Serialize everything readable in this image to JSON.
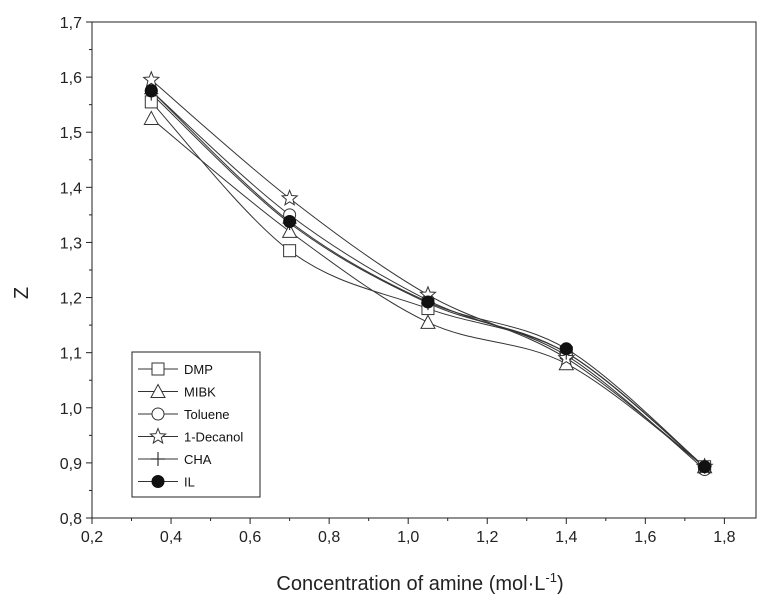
{
  "chart_data": {
    "type": "line",
    "xlabel": "Concentration of amine (mol·L",
    "xlabel_sup": "-1",
    "xlabel_close": ")",
    "ylabel": "Z",
    "xlim": [
      0.2,
      1.88
    ],
    "ylim": [
      0.8,
      1.7
    ],
    "xticks": [
      0.2,
      0.4,
      0.6,
      0.8,
      1.0,
      1.2,
      1.4,
      1.6,
      1.8
    ],
    "xtick_labels": [
      "0,2",
      "0,4",
      "0,6",
      "0,8",
      "1,0",
      "1,2",
      "1,4",
      "1,6",
      "1,8"
    ],
    "yticks": [
      0.8,
      0.9,
      1.0,
      1.1,
      1.2,
      1.3,
      1.4,
      1.5,
      1.6,
      1.7
    ],
    "ytick_labels": [
      "0,8",
      "0,9",
      "1,0",
      "1,1",
      "1,2",
      "1,3",
      "1,4",
      "1,5",
      "1,6",
      "1,7"
    ],
    "grid": false,
    "legend_position": "bottom-left",
    "x": [
      0.35,
      0.7,
      1.05,
      1.4,
      1.75
    ],
    "series": [
      {
        "name": "DMP",
        "marker": "square",
        "values": [
          1.555,
          1.285,
          1.18,
          1.1,
          0.893
        ]
      },
      {
        "name": "MIBK",
        "marker": "triangle",
        "values": [
          1.525,
          1.32,
          1.155,
          1.08,
          0.893
        ]
      },
      {
        "name": "Toluene",
        "marker": "circle",
        "values": [
          1.575,
          1.35,
          1.195,
          1.095,
          0.888
        ]
      },
      {
        "name": "1-Decanol",
        "marker": "star",
        "values": [
          1.595,
          1.38,
          1.205,
          1.09,
          0.893
        ]
      },
      {
        "name": "CHA",
        "marker": "plus",
        "values": [
          1.57,
          1.335,
          1.19,
          1.1,
          0.893
        ]
      },
      {
        "name": "IL",
        "marker": "filled-circle",
        "values": [
          1.575,
          1.338,
          1.192,
          1.107,
          0.893
        ]
      }
    ],
    "colors": {
      "line": "#333333",
      "marker_fill": "#ffffff",
      "filled_marker": "#111111"
    }
  }
}
